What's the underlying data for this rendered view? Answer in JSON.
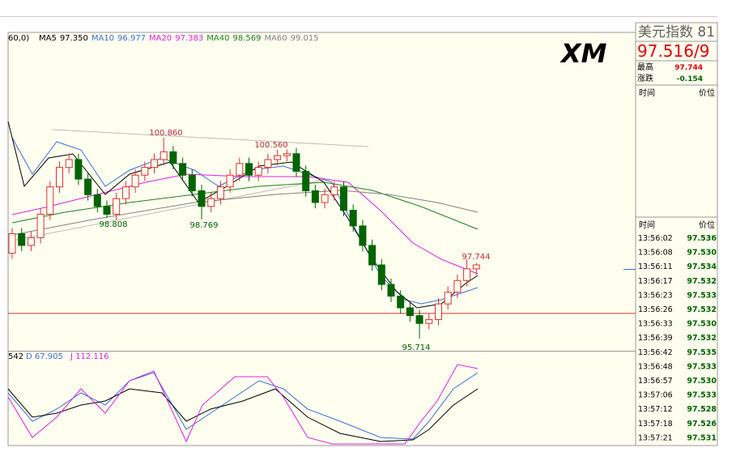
{
  "header": {
    "partial": "60,0)",
    "indicators": [
      {
        "name": "MA5",
        "value": "97.350",
        "color": "#000000"
      },
      {
        "name": "MA10",
        "value": "96.977",
        "color": "#3a6fd8"
      },
      {
        "name": "MA20",
        "value": "97.383",
        "color": "#e020e0"
      },
      {
        "name": "MA40",
        "value": "98.569",
        "color": "#208020"
      },
      {
        "name": "MA60",
        "value": "99.015",
        "color": "#808080"
      }
    ]
  },
  "chart": {
    "ylim": [
      95.42,
      103.56
    ],
    "level": 96.357,
    "annotations": [
      "100.860",
      "100.560",
      "98.808",
      "98.769",
      "95.714",
      "97.744"
    ],
    "candles": [
      [
        97.9,
        98.55,
        97.75,
        98.4
      ],
      [
        98.4,
        98.55,
        97.95,
        98.1
      ],
      [
        98.1,
        98.45,
        97.95,
        98.3
      ],
      [
        98.3,
        99.05,
        98.15,
        98.9
      ],
      [
        98.9,
        99.75,
        98.75,
        99.6
      ],
      [
        99.6,
        100.25,
        99.45,
        100.1
      ],
      [
        100.1,
        100.45,
        99.95,
        100.3
      ],
      [
        100.3,
        100.45,
        99.65,
        99.8
      ],
      [
        99.8,
        99.95,
        99.25,
        99.4
      ],
      [
        99.4,
        99.55,
        98.95,
        99.1
      ],
      [
        99.1,
        99.25,
        98.808,
        98.9
      ],
      [
        98.9,
        99.45,
        98.75,
        99.3
      ],
      [
        99.3,
        99.75,
        99.15,
        99.6
      ],
      [
        99.6,
        100.05,
        99.45,
        99.9
      ],
      [
        99.9,
        100.25,
        99.75,
        100.1
      ],
      [
        100.1,
        100.45,
        99.95,
        100.3
      ],
      [
        100.3,
        100.86,
        100.15,
        100.5
      ],
      [
        100.5,
        100.65,
        100.05,
        100.2
      ],
      [
        100.2,
        100.35,
        99.75,
        99.9
      ],
      [
        99.9,
        100.05,
        99.35,
        99.5
      ],
      [
        99.5,
        99.65,
        98.769,
        99.1
      ],
      [
        99.1,
        99.45,
        98.95,
        99.3
      ],
      [
        99.3,
        99.75,
        99.15,
        99.6
      ],
      [
        99.6,
        100.05,
        99.45,
        99.9
      ],
      [
        99.9,
        100.35,
        99.75,
        100.2
      ],
      [
        100.2,
        100.35,
        99.75,
        99.9
      ],
      [
        99.9,
        100.25,
        99.75,
        100.1
      ],
      [
        100.1,
        100.45,
        99.95,
        100.3
      ],
      [
        100.3,
        100.55,
        100.15,
        100.4
      ],
      [
        100.4,
        100.56,
        100.25,
        100.45
      ],
      [
        100.45,
        100.6,
        99.85,
        100.0
      ],
      [
        100.0,
        100.15,
        99.35,
        99.5
      ],
      [
        99.5,
        99.65,
        99.05,
        99.2
      ],
      [
        99.2,
        99.55,
        99.05,
        99.4
      ],
      [
        99.4,
        99.75,
        99.25,
        99.6
      ],
      [
        99.6,
        99.75,
        98.85,
        99.0
      ],
      [
        99.0,
        99.15,
        98.45,
        98.6
      ],
      [
        98.6,
        98.75,
        97.95,
        98.1
      ],
      [
        98.1,
        98.25,
        97.45,
        97.6
      ],
      [
        97.6,
        97.75,
        96.95,
        97.1
      ],
      [
        97.1,
        97.25,
        96.65,
        96.8
      ],
      [
        96.8,
        96.95,
        96.35,
        96.5
      ],
      [
        96.5,
        96.65,
        96.15,
        96.3
      ],
      [
        96.3,
        96.45,
        95.714,
        96.1
      ],
      [
        96.1,
        96.35,
        95.95,
        96.2
      ],
      [
        96.2,
        96.75,
        96.05,
        96.6
      ],
      [
        96.6,
        97.05,
        96.45,
        96.9
      ],
      [
        96.9,
        97.35,
        96.75,
        97.2
      ],
      [
        97.2,
        97.744,
        97.05,
        97.5
      ],
      [
        97.5,
        97.65,
        97.35,
        97.6
      ]
    ]
  },
  "kdj": {
    "partial": "542",
    "d": "D 67.905",
    "j": "J 112.116"
  },
  "panel": {
    "title": "美元指数 81",
    "logo": "XM",
    "price": "97.516/9",
    "stats": [
      {
        "label": "最高",
        "value": "97.744"
      },
      {
        "label": "涨跌",
        "value": "-0.154"
      }
    ],
    "col_time": "时间",
    "col_price": "价位",
    "trades": [
      [
        "13:56:02",
        "97.536"
      ],
      [
        "13:56:08",
        "97.530"
      ],
      [
        "13:56:11",
        "97.534"
      ],
      [
        "13:56:17",
        "97.532"
      ],
      [
        "13:56:23",
        "97.533"
      ],
      [
        "13:56:26",
        "97.532"
      ],
      [
        "13:56:33",
        "97.530"
      ],
      [
        "13:56:39",
        "97.532"
      ],
      [
        "13:56:42",
        "97.535"
      ],
      [
        "13:56:48",
        "97.533"
      ],
      [
        "13:56:57",
        "97.530"
      ],
      [
        "13:57:06",
        "97.533"
      ],
      [
        "13:57:12",
        "97.528"
      ],
      [
        "13:57:18",
        "97.526"
      ],
      [
        "13:57:21",
        "97.531"
      ]
    ]
  }
}
